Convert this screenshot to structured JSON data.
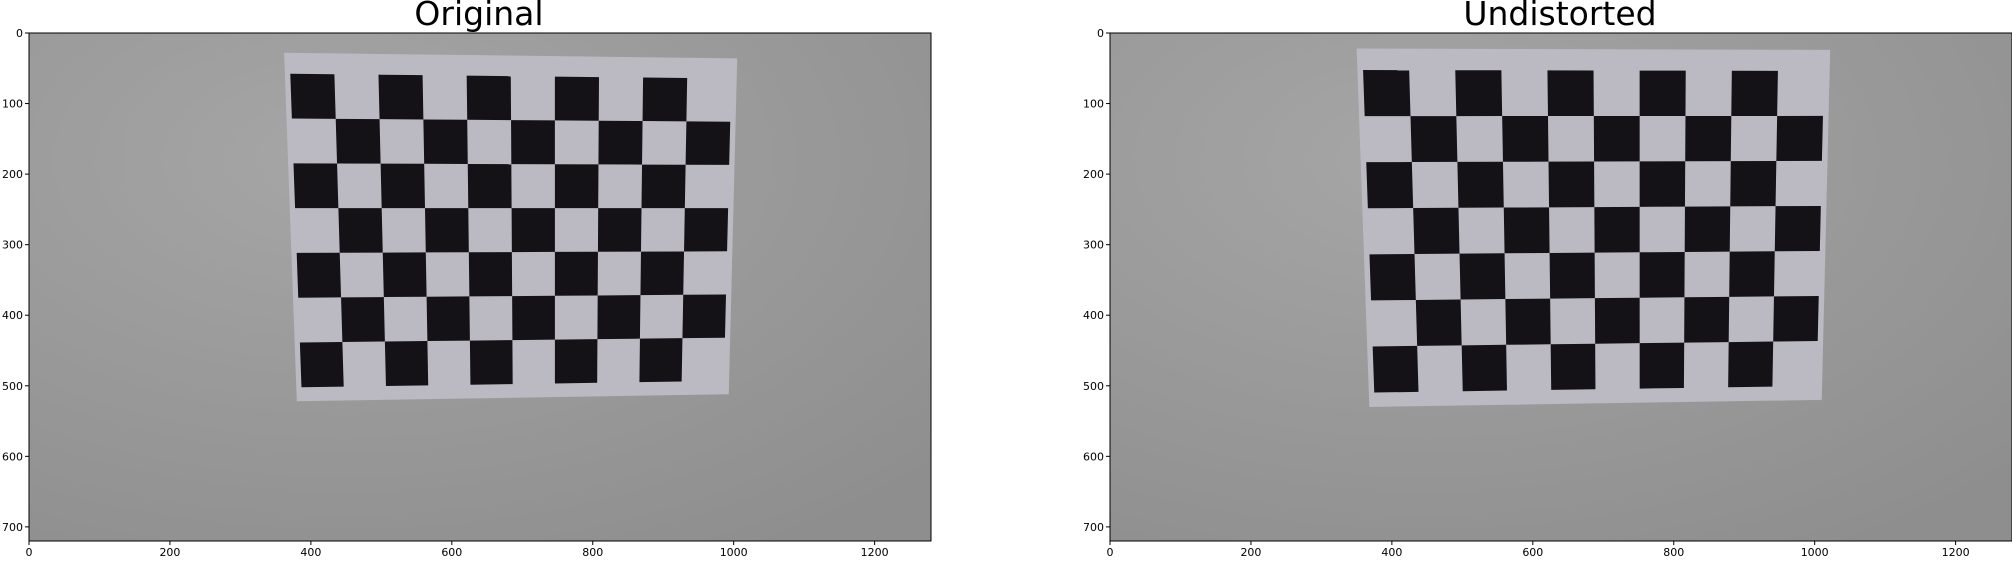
{
  "panels": [
    {
      "id": "original",
      "title": "Original",
      "xticks": [
        "0",
        "200",
        "400",
        "600",
        "800",
        "1000",
        "1200"
      ],
      "yticks": [
        "0",
        "100",
        "200",
        "300",
        "400",
        "500",
        "600",
        "700"
      ],
      "image": {
        "width": 1280,
        "height": 720,
        "board": {
          "rows": 7,
          "cols": 10,
          "first_square": "dark",
          "paper_quad_data_units": [
            [
              362,
              28
            ],
            [
              1005,
              36
            ],
            [
              993,
              512
            ],
            [
              380,
              522
            ]
          ]
        }
      }
    },
    {
      "id": "undistorted",
      "title": "Undistorted",
      "xticks": [
        "0",
        "200",
        "400",
        "600",
        "800",
        "1000",
        "1200"
      ],
      "yticks": [
        "0",
        "100",
        "200",
        "300",
        "400",
        "500",
        "600",
        "700"
      ],
      "image": {
        "width": 1280,
        "height": 720,
        "board": {
          "rows": 7,
          "cols": 10,
          "first_square": "dark",
          "paper_quad_data_units": [
            [
              350,
              22
            ],
            [
              1022,
              24
            ],
            [
              1010,
              520
            ],
            [
              368,
              530
            ]
          ]
        }
      }
    }
  ],
  "colors": {
    "background": "#8f8f8f",
    "background_highlight": "#a4a4a4",
    "paper": "#bbb9c2",
    "dark_square": "#141217",
    "axis": "#000000",
    "text": "#000000"
  }
}
